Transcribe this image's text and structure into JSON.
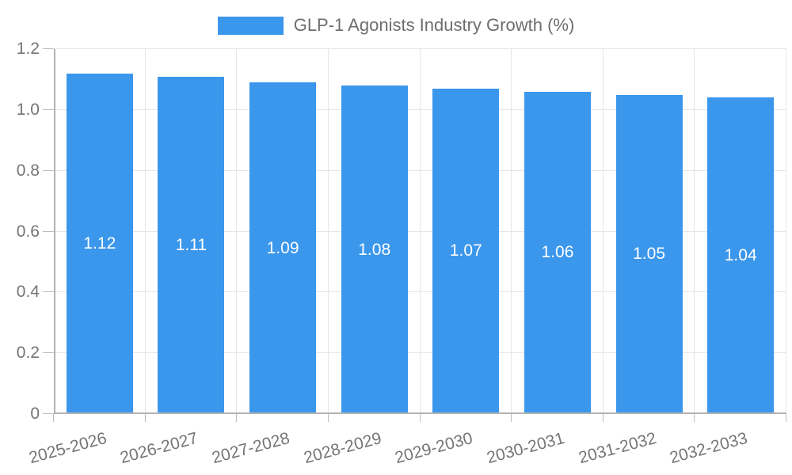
{
  "legend": {
    "label": "GLP-1 Agonists Industry Growth (%)"
  },
  "chart_data": {
    "type": "bar",
    "title": "GLP-1 Agonists Industry Growth (%)",
    "categories": [
      "2025-2026",
      "2026-2027",
      "2027-2028",
      "2028-2029",
      "2029-2030",
      "2030-2031",
      "2031-2032",
      "2032-2033"
    ],
    "values": [
      1.12,
      1.11,
      1.09,
      1.08,
      1.07,
      1.06,
      1.05,
      1.04
    ],
    "value_labels": [
      "1.12",
      "1.11",
      "1.09",
      "1.08",
      "1.07",
      "1.06",
      "1.05",
      "1.04"
    ],
    "series_color": "#3B97EC",
    "xlabel": "",
    "ylabel": "",
    "ylim": [
      0,
      1.2
    ],
    "ytick_labels": [
      "0",
      "0.2",
      "0.4",
      "0.6",
      "0.8",
      "1.0",
      "1.2"
    ],
    "grid": true,
    "legend_position": "top",
    "x_label_rotation_deg": -15
  }
}
